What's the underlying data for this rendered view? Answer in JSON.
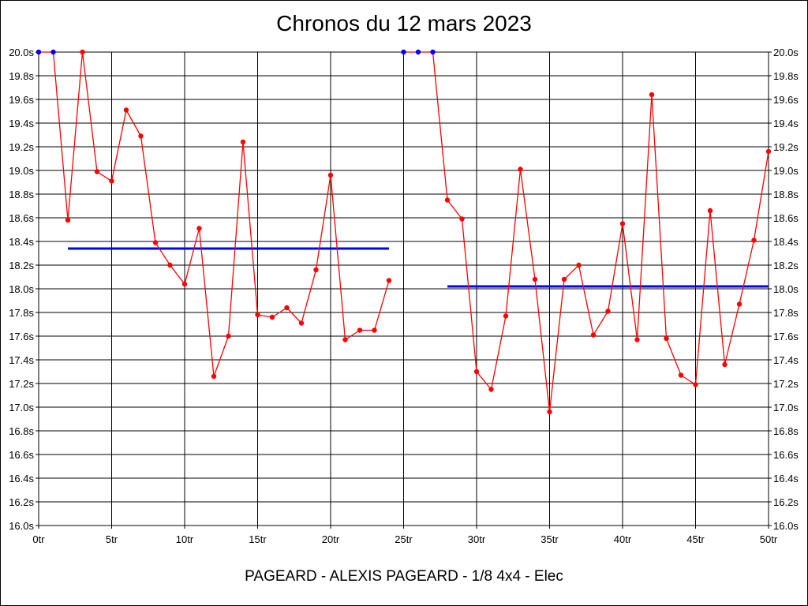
{
  "chart_data": {
    "type": "line",
    "title": "Chronos du 12 mars 2023",
    "subtitle": "PAGEARD - ALEXIS PAGEARD - 1/8 4x4 - Elec",
    "xlim": [
      0,
      50
    ],
    "ylim": [
      16.0,
      20.0
    ],
    "x_ticks": [
      0,
      5,
      10,
      15,
      20,
      25,
      30,
      35,
      40,
      45,
      50
    ],
    "x_tick_labels": [
      "0tr",
      "5tr",
      "10tr",
      "15tr",
      "20tr",
      "25tr",
      "30tr",
      "35tr",
      "40tr",
      "45tr",
      "50tr"
    ],
    "y_ticks": [
      16.0,
      16.2,
      16.4,
      16.6,
      16.8,
      17.0,
      17.2,
      17.4,
      17.6,
      17.8,
      18.0,
      18.2,
      18.4,
      18.6,
      18.8,
      19.0,
      19.2,
      19.4,
      19.6,
      19.8,
      20.0
    ],
    "y_tick_labels": [
      "16.0s",
      "16.2s",
      "16.4s",
      "16.6s",
      "16.8s",
      "17.0s",
      "17.2s",
      "17.4s",
      "17.6s",
      "17.8s",
      "18.0s",
      "18.2s",
      "18.4s",
      "18.6s",
      "18.8s",
      "19.0s",
      "19.2s",
      "19.4s",
      "19.6s",
      "19.8s",
      "20.0s"
    ],
    "grid": true,
    "colors": {
      "line": "#ff0000",
      "point": "#ff0000",
      "capped_point": "#0000ff",
      "average": "#0000ff",
      "grid": "#000000"
    },
    "series": [
      {
        "x": [
          0,
          1,
          2,
          3,
          4,
          5,
          6,
          7,
          8,
          9,
          10,
          11,
          12,
          13,
          14,
          15,
          16,
          17,
          18,
          19,
          20,
          21,
          22,
          23,
          24
        ],
        "y": [
          20.0,
          20.0,
          18.58,
          20.0,
          18.99,
          18.91,
          19.51,
          19.29,
          18.39,
          18.2,
          18.04,
          18.51,
          17.26,
          17.6,
          19.24,
          17.78,
          17.76,
          17.84,
          17.71,
          18.16,
          18.96,
          17.57,
          17.65,
          17.65,
          18.07
        ],
        "capped": [
          true,
          true,
          false,
          false,
          false,
          false,
          false,
          false,
          false,
          false,
          false,
          false,
          false,
          false,
          false,
          false,
          false,
          false,
          false,
          false,
          false,
          false,
          false,
          false,
          false
        ]
      },
      {
        "x": [
          25,
          26,
          27,
          28,
          29,
          30,
          31,
          32,
          33,
          34,
          35,
          36,
          37,
          38,
          39,
          40,
          41,
          42,
          43,
          44,
          45,
          46,
          47,
          48,
          49,
          50
        ],
        "y": [
          20.0,
          20.0,
          20.0,
          18.75,
          18.59,
          17.3,
          17.15,
          17.77,
          19.01,
          18.08,
          16.96,
          18.08,
          18.2,
          17.61,
          17.81,
          18.55,
          17.57,
          19.64,
          17.58,
          17.27,
          17.19,
          18.66,
          17.36,
          17.87,
          18.41,
          19.16
        ],
        "capped": [
          true,
          true,
          true,
          false,
          false,
          false,
          false,
          false,
          false,
          false,
          false,
          false,
          false,
          false,
          false,
          false,
          false,
          false,
          false,
          false,
          false,
          false,
          false,
          false,
          false,
          false
        ]
      }
    ],
    "averages": [
      {
        "x_start": 2,
        "x_end": 24,
        "value": 18.34
      },
      {
        "x_start": 28,
        "x_end": 50,
        "value": 18.02
      }
    ]
  }
}
